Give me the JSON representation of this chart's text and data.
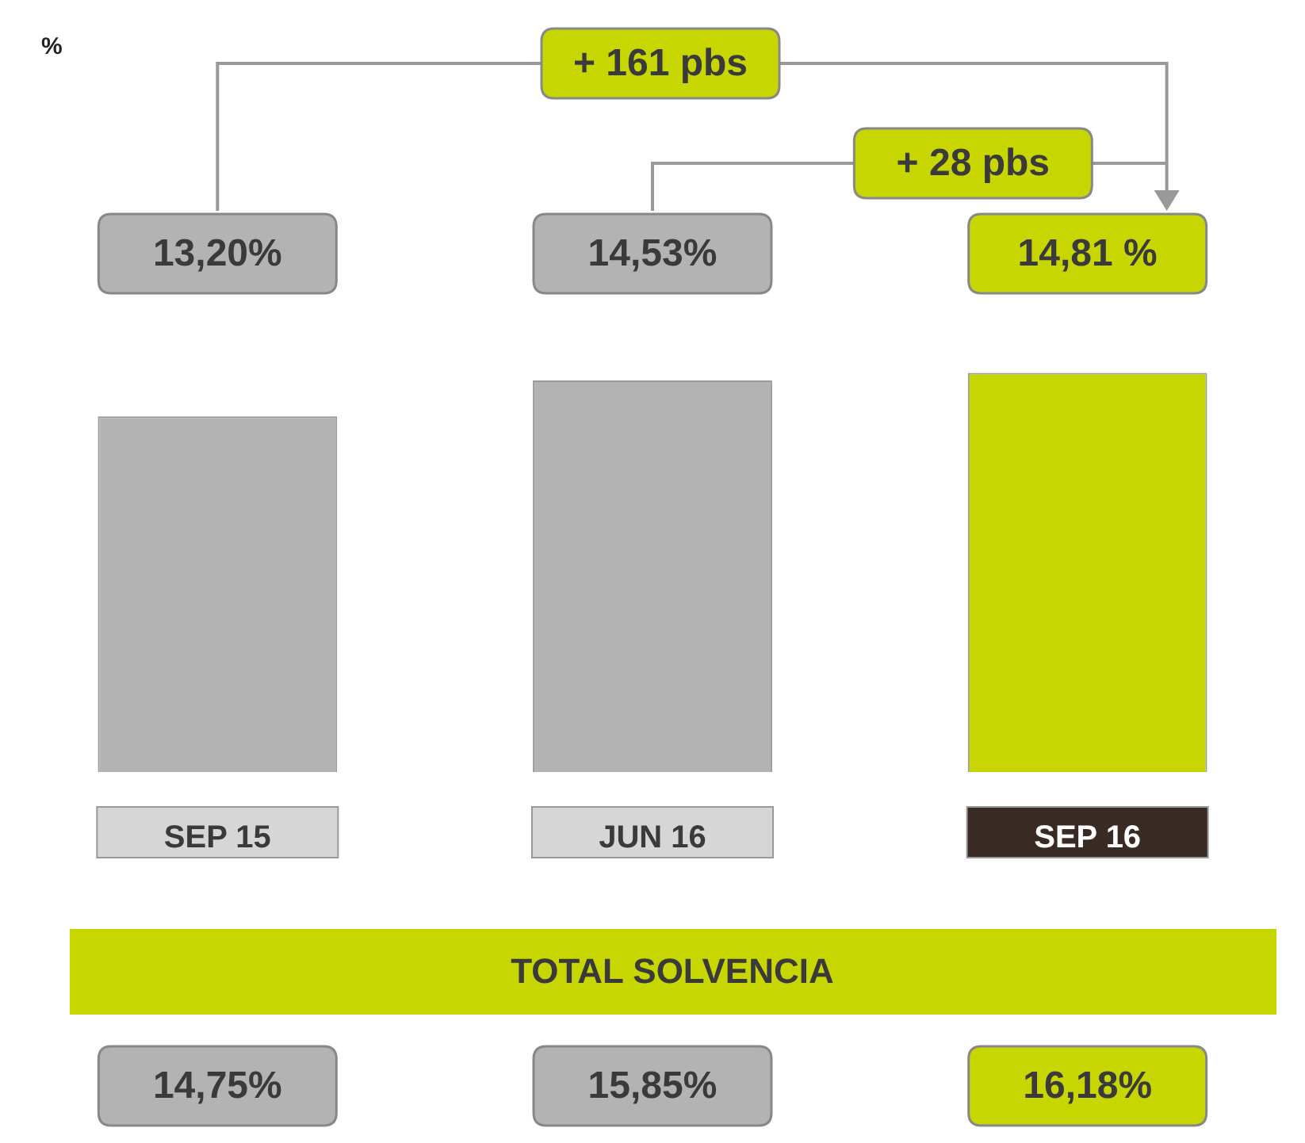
{
  "chart_data": {
    "type": "bar",
    "categories": [
      "SEP 15",
      "JUN 16",
      "SEP 16"
    ],
    "values": [
      13.2,
      14.53,
      14.81
    ],
    "colors": [
      "#b3b3b3",
      "#b3b3b3",
      "#c8d600"
    ],
    "value_labels": [
      "13,20%",
      "14,53%",
      "14,81 %"
    ],
    "tick_labels": "x",
    "grid": false,
    "legend": false,
    "annotations": [
      "%",
      "+ 161 pbs",
      "+ 28 pbs",
      "TOTAL SOLVENCIA",
      "14,75%",
      "15,85%",
      "16,18%"
    ]
  }
}
